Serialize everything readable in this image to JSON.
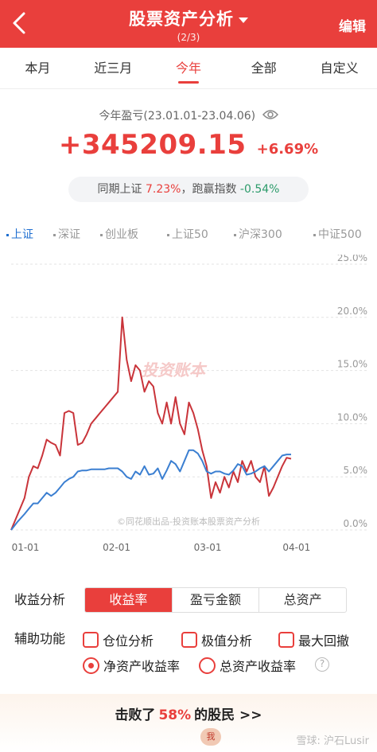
{
  "header": {
    "title": "股票资产分析",
    "subtitle": "(2/3)",
    "edit_label": "编辑"
  },
  "tabs": [
    "本月",
    "近三月",
    "今年",
    "全部",
    "自定义"
  ],
  "active_tab": "今年",
  "summary": {
    "period_label": "今年盈亏(23.01.01-23.04.06)",
    "profit_amount": "+345209.15",
    "profit_pct": "+6.69%",
    "compare_prefix": "同期上证",
    "compare_index_pct": "7.23%",
    "compare_mid": "，跑赢指数",
    "compare_diff": "-0.54%"
  },
  "indices": [
    "上证",
    "深证",
    "创业板",
    "上证50",
    "沪深300",
    "中证500"
  ],
  "active_index": "上证",
  "chart_data": {
    "type": "line",
    "y_ticks": [
      "0.0%",
      "5.0%",
      "10.0%",
      "15.0%",
      "20.0%",
      "25.0%"
    ],
    "x_ticks": [
      "01-01",
      "02-01",
      "03-01",
      "04-01"
    ],
    "ylim": [
      0,
      25
    ],
    "watermark_logo": "投资账本",
    "footnote": "©同花顺出品-投资账本股票资产分析",
    "series": [
      {
        "color": "#c9343a",
        "points": [
          [
            0,
            0
          ],
          [
            3,
            1.5
          ],
          [
            6,
            3
          ],
          [
            8,
            5
          ],
          [
            10,
            6
          ],
          [
            12,
            5.8
          ],
          [
            14,
            7
          ],
          [
            16,
            8.5
          ],
          [
            18,
            8.2
          ],
          [
            20,
            8
          ],
          [
            22,
            7
          ],
          [
            24,
            11
          ],
          [
            26,
            11.2
          ],
          [
            28,
            11
          ],
          [
            30,
            8
          ],
          [
            32,
            8.2
          ],
          [
            34,
            9
          ],
          [
            36,
            10
          ],
          [
            38,
            10.5
          ],
          [
            40,
            11
          ],
          [
            42,
            11.5
          ],
          [
            44,
            12
          ],
          [
            46,
            12.5
          ],
          [
            48,
            13
          ],
          [
            50,
            20
          ],
          [
            52,
            16
          ],
          [
            54,
            14
          ],
          [
            56,
            15.5
          ],
          [
            58,
            15
          ],
          [
            60,
            13
          ],
          [
            62,
            14
          ],
          [
            64,
            13.5
          ],
          [
            66,
            11
          ],
          [
            68,
            10
          ],
          [
            70,
            12
          ],
          [
            72,
            10
          ],
          [
            74,
            12.5
          ],
          [
            76,
            10
          ],
          [
            78,
            9
          ],
          [
            80,
            12
          ],
          [
            82,
            11
          ],
          [
            84,
            9.5
          ],
          [
            86,
            7.5
          ],
          [
            88,
            6
          ],
          [
            90,
            3
          ],
          [
            92,
            4.5
          ],
          [
            94,
            3.5
          ],
          [
            96,
            5
          ],
          [
            98,
            4
          ],
          [
            100,
            5.5
          ],
          [
            102,
            4.5
          ],
          [
            104,
            6.5
          ],
          [
            106,
            5.5
          ],
          [
            108,
            6.5
          ],
          [
            110,
            5
          ],
          [
            112,
            4.5
          ],
          [
            114,
            6
          ],
          [
            116,
            3.2
          ],
          [
            118,
            4
          ],
          [
            120,
            5
          ],
          [
            122,
            6
          ],
          [
            124,
            6.8
          ],
          [
            126,
            6.7
          ]
        ]
      },
      {
        "color": "#3b7fd1",
        "points": [
          [
            0,
            0
          ],
          [
            3,
            0.8
          ],
          [
            6,
            1.5
          ],
          [
            8,
            2
          ],
          [
            10,
            2.5
          ],
          [
            12,
            2.5
          ],
          [
            14,
            3
          ],
          [
            16,
            3.5
          ],
          [
            18,
            3.2
          ],
          [
            20,
            3.5
          ],
          [
            22,
            4
          ],
          [
            24,
            4.5
          ],
          [
            26,
            4.8
          ],
          [
            28,
            5
          ],
          [
            30,
            5.5
          ],
          [
            32,
            5.6
          ],
          [
            34,
            5.6
          ],
          [
            36,
            5.7
          ],
          [
            38,
            5.7
          ],
          [
            40,
            5.7
          ],
          [
            42,
            5.7
          ],
          [
            44,
            5.8
          ],
          [
            46,
            5.8
          ],
          [
            48,
            5.8
          ],
          [
            50,
            5.5
          ],
          [
            52,
            5
          ],
          [
            54,
            4.8
          ],
          [
            56,
            5.5
          ],
          [
            58,
            5.2
          ],
          [
            60,
            6
          ],
          [
            62,
            5.2
          ],
          [
            64,
            5.3
          ],
          [
            66,
            5.8
          ],
          [
            68,
            4.8
          ],
          [
            70,
            5.6
          ],
          [
            72,
            6.5
          ],
          [
            74,
            6.2
          ],
          [
            76,
            5.5
          ],
          [
            78,
            6.5
          ],
          [
            80,
            7.5
          ],
          [
            82,
            7.5
          ],
          [
            84,
            7.2
          ],
          [
            86,
            6.5
          ],
          [
            88,
            5.5
          ],
          [
            90,
            5.3
          ],
          [
            92,
            5.5
          ],
          [
            94,
            5.5
          ],
          [
            96,
            5.3
          ],
          [
            98,
            5.2
          ],
          [
            100,
            5.6
          ],
          [
            102,
            6.2
          ],
          [
            104,
            6
          ],
          [
            106,
            5.2
          ],
          [
            108,
            5.3
          ],
          [
            110,
            5.5
          ],
          [
            112,
            5.8
          ],
          [
            114,
            6
          ],
          [
            116,
            5.5
          ],
          [
            118,
            6
          ],
          [
            120,
            6.5
          ],
          [
            122,
            7
          ],
          [
            124,
            7.1
          ],
          [
            126,
            7.1
          ]
        ]
      }
    ]
  },
  "analysis": {
    "label": "收益分析",
    "options": [
      "收益率",
      "盈亏金额",
      "总资产"
    ],
    "selected": "收益率"
  },
  "aux": {
    "label": "辅助功能",
    "checkboxes": [
      "仓位分析",
      "极值分析",
      "最大回撤"
    ],
    "radios": [
      "净资产收益率",
      "总资产收益率"
    ],
    "selected_radio": "净资产收益率"
  },
  "beat": {
    "prefix": "击败了",
    "pct": "58%",
    "suffix": "的股民 >>",
    "badge": "我"
  },
  "watermark": "雪球: 沪石Lusir"
}
